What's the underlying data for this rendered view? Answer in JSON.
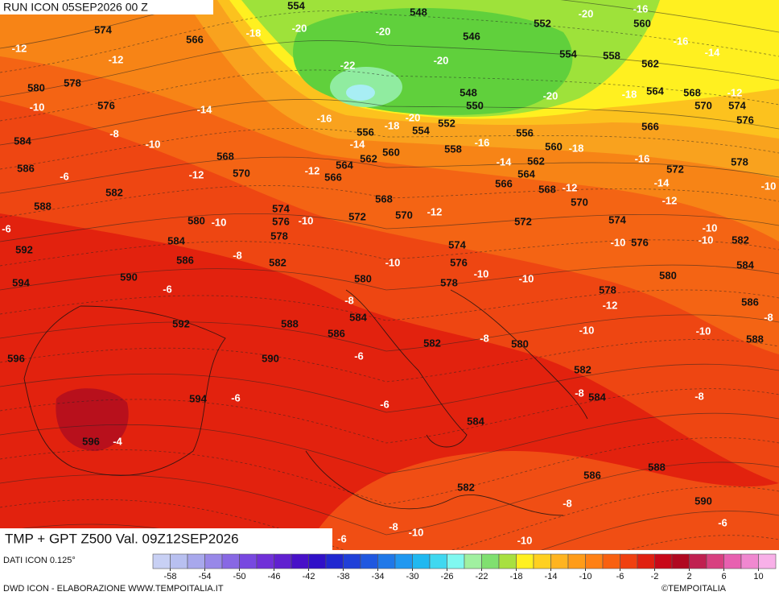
{
  "header": {
    "run": "RUN ICON 05SEP2026 00 Z",
    "title": "TMP + GPT Z500 Val. 09Z12SEP2026"
  },
  "footer": {
    "data_source": "DATI ICON 0.125°",
    "credit": "DWD ICON - ELABORAZIONE WWW.TEMPOITALIA.IT",
    "copyright": "©TEMPOITALIA"
  },
  "colorbar": {
    "range": [
      -60,
      12
    ],
    "ticks": [
      -58,
      -54,
      -50,
      -46,
      -42,
      -38,
      -34,
      -30,
      -26,
      -22,
      -18,
      -14,
      -10,
      -6,
      -2,
      2,
      6,
      10
    ],
    "colors": [
      "#c8d0f4",
      "#b8c0f0",
      "#a8a8ec",
      "#9888e8",
      "#8868e4",
      "#7848e0",
      "#7030d8",
      "#6020d0",
      "#4810c8",
      "#3010c8",
      "#2028d0",
      "#2040d8",
      "#2058e0",
      "#2078e8",
      "#2098f0",
      "#20b8f0",
      "#40d8f0",
      "#80f8f0",
      "#a0f0a0",
      "#80e070",
      "#a8e040",
      "#fff020",
      "#ffd020",
      "#ffb420",
      "#ff9c18",
      "#ff8014",
      "#f86010",
      "#f04010",
      "#e02010",
      "#c80818",
      "#b00820",
      "#c02050",
      "#d84080",
      "#e860b0",
      "#f088d0",
      "#f8b0e8"
    ]
  },
  "map": {
    "geopotential": [
      554,
      548,
      546,
      552,
      560,
      574,
      566,
      554,
      558,
      562,
      580,
      578,
      576,
      548,
      550,
      564,
      568,
      570,
      574,
      576,
      566,
      552,
      554,
      556,
      556,
      584,
      560,
      558,
      560,
      562,
      562,
      568,
      564,
      586,
      570,
      566,
      564,
      572,
      578,
      566,
      568,
      582,
      568,
      570,
      588,
      574,
      572,
      570,
      576,
      580,
      572,
      574,
      578,
      584,
      576,
      582,
      574,
      592,
      586,
      582,
      576,
      584,
      590,
      580,
      594,
      580,
      578,
      578,
      586,
      592,
      588,
      584,
      586,
      588,
      582,
      580,
      596,
      590,
      582,
      584,
      594,
      584,
      596,
      588,
      586,
      582,
      590
    ],
    "temperature": [
      -12,
      -12,
      -18,
      -20,
      -20,
      -20,
      -16,
      -16,
      -14,
      -22,
      -20,
      -20,
      -18,
      -12,
      -10,
      -14,
      -16,
      -18,
      -20,
      -16,
      -18,
      -8,
      -10,
      -14,
      -12,
      -12,
      -14,
      -16,
      -6,
      -14,
      -12,
      -12,
      -10,
      -12,
      -6,
      -10,
      -10,
      -10,
      -10,
      -10,
      -8,
      -10,
      -10,
      -10,
      -6,
      -8,
      -12,
      -8,
      -10,
      -10,
      -8,
      -6,
      -8,
      -6,
      -6,
      -8,
      -4,
      -8,
      -8,
      -10,
      -6,
      -10,
      -6
    ]
  }
}
